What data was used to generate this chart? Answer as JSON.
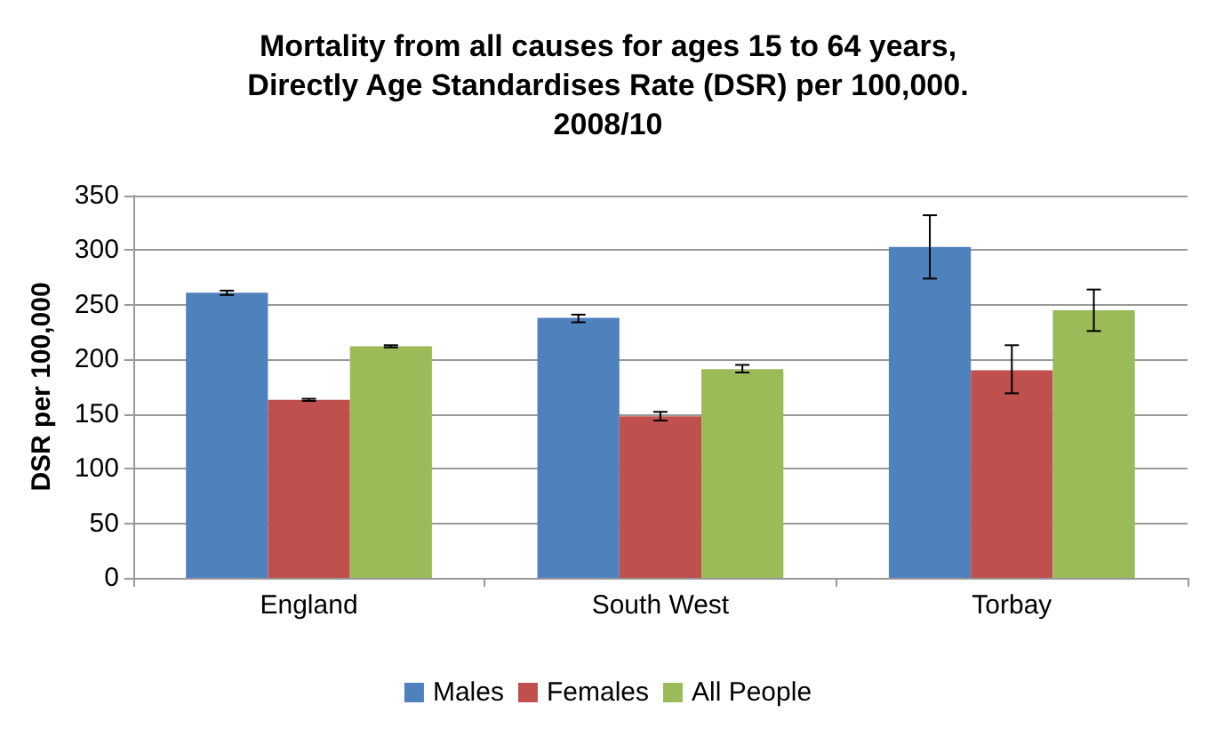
{
  "chart_data": {
    "type": "bar",
    "title": "Mortality from all causes for ages 15 to 64 years,\nDirectly Age Standardises Rate (DSR) per 100,000.\n2008/10",
    "ylabel": "DSR per 100,000",
    "categories": [
      "England",
      "South West",
      "Torbay"
    ],
    "series": [
      {
        "name": "Males",
        "color": "#4f81bd",
        "values": [
          261,
          238,
          303
        ],
        "errors": [
          [
            259,
            263
          ],
          [
            234,
            241
          ],
          [
            274,
            332
          ]
        ]
      },
      {
        "name": "Females",
        "color": "#c0504d",
        "values": [
          163,
          148,
          190
        ],
        "errors": [
          [
            162,
            164
          ],
          [
            144,
            152
          ],
          [
            169,
            213
          ]
        ]
      },
      {
        "name": "All People",
        "color": "#9bbb59",
        "values": [
          212,
          191,
          245
        ],
        "errors": [
          [
            211,
            213
          ],
          [
            188,
            195
          ],
          [
            226,
            264
          ]
        ]
      }
    ],
    "ylim": [
      0,
      350
    ],
    "yticks": [
      0,
      50,
      100,
      150,
      200,
      250,
      300,
      350
    ],
    "grid": "y",
    "legend": "bottom"
  }
}
